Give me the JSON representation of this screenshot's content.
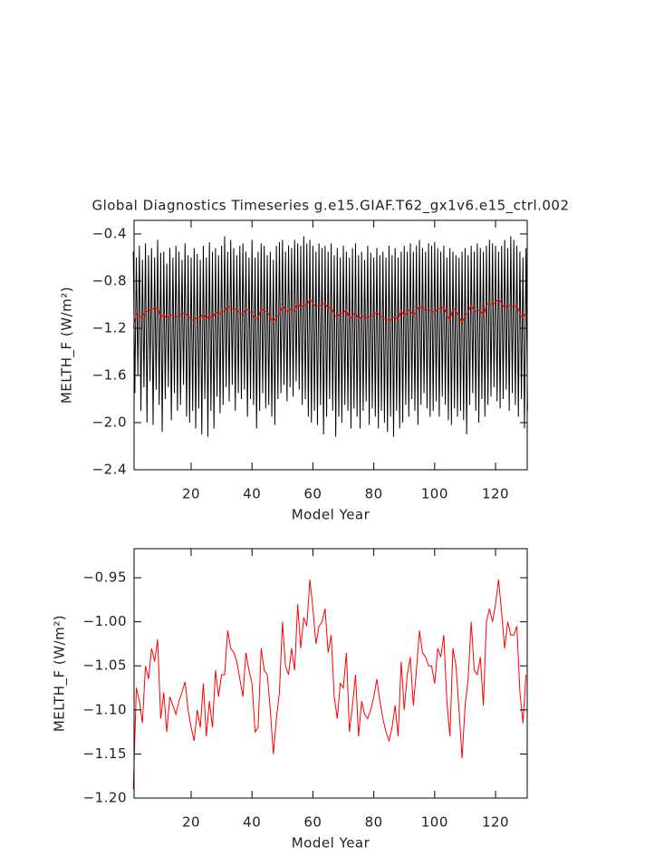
{
  "chart_data": [
    {
      "type": "line",
      "title": "Global Diagnostics Timeseries g.e15.GIAF.T62_gx1v6.e15_ctrl.002",
      "xlabel": "Model Year",
      "ylabel": "MELTH_F (W/m²)",
      "xlim": [
        1.25,
        130.4
      ],
      "xticks": [
        20,
        40,
        60,
        80,
        100,
        120
      ],
      "ylim": [
        -2.4,
        -0.285
      ],
      "yticks": [
        {
          "value": -2.4,
          "label": "−2.4"
        },
        {
          "value": -2.0,
          "label": "−2.0"
        },
        {
          "value": -1.6,
          "label": "−1.6"
        },
        {
          "value": -1.2,
          "label": "−1.2"
        },
        {
          "value": -0.8,
          "label": "−0.8"
        },
        {
          "value": -0.4,
          "label": "−0.4"
        }
      ],
      "x": [
        1,
        2,
        3,
        4,
        5,
        6,
        7,
        8,
        9,
        10,
        11,
        12,
        13,
        14,
        15,
        16,
        17,
        18,
        19,
        20,
        21,
        22,
        23,
        24,
        25,
        26,
        27,
        28,
        29,
        30,
        31,
        32,
        33,
        34,
        35,
        36,
        37,
        38,
        39,
        40,
        41,
        42,
        43,
        44,
        45,
        46,
        47,
        48,
        49,
        50,
        51,
        52,
        53,
        54,
        55,
        56,
        57,
        58,
        59,
        60,
        61,
        62,
        63,
        64,
        65,
        66,
        67,
        68,
        69,
        70,
        71,
        72,
        73,
        74,
        75,
        76,
        77,
        78,
        79,
        80,
        81,
        82,
        83,
        84,
        85,
        86,
        87,
        88,
        89,
        90,
        91,
        92,
        93,
        94,
        95,
        96,
        97,
        98,
        99,
        100,
        101,
        102,
        103,
        104,
        105,
        106,
        107,
        108,
        109,
        110,
        111,
        112,
        113,
        114,
        115,
        116,
        117,
        118,
        119,
        120,
        121,
        122,
        123,
        124,
        125,
        126,
        127,
        128,
        129,
        130
      ],
      "series": [
        {
          "color": "#000000",
          "x": [
            1,
            1.5,
            2,
            2.5,
            3,
            3.5,
            4,
            4.5,
            5,
            5.5,
            6,
            6.5,
            7,
            7.5,
            8,
            8.5,
            9,
            9.5,
            10,
            10.5,
            11,
            11.5,
            12,
            12.5,
            13,
            13.5,
            14,
            14.5,
            15,
            15.5,
            16,
            16.5,
            17,
            17.5,
            18,
            18.5,
            19,
            19.5,
            20,
            20.5,
            21,
            21.5,
            22,
            22.5,
            23,
            23.5,
            24,
            24.5,
            25,
            25.5,
            26,
            26.5,
            27,
            27.5,
            28,
            28.5,
            29,
            29.5,
            30,
            30.5,
            31,
            31.5,
            32,
            32.5,
            33,
            33.5,
            34,
            34.5,
            35,
            35.5,
            36,
            36.5,
            37,
            37.5,
            38,
            38.5,
            39,
            39.5,
            40,
            40.5,
            41,
            41.5,
            42,
            42.5,
            43,
            43.5,
            44,
            44.5,
            45,
            45.5,
            46,
            46.5,
            47,
            47.5,
            48,
            48.5,
            49,
            49.5,
            50,
            50.5,
            51,
            51.5,
            52,
            52.5,
            53,
            53.5,
            54,
            54.5,
            55,
            55.5,
            56,
            56.5,
            57,
            57.5,
            58,
            58.5,
            59,
            59.5,
            60,
            60.5,
            61,
            61.5,
            62,
            62.5,
            63,
            63.5,
            64,
            64.5,
            65,
            65.5,
            66,
            66.5,
            67,
            67.5,
            68,
            68.5,
            69,
            69.5,
            70,
            70.5,
            71,
            71.5,
            72,
            72.5,
            73,
            73.5,
            74,
            74.5,
            75,
            75.5,
            76,
            76.5,
            77,
            77.5,
            78,
            78.5,
            79,
            79.5,
            80,
            80.5,
            81,
            81.5,
            82,
            82.5,
            83,
            83.5,
            84,
            84.5,
            85,
            85.5,
            86,
            86.5,
            87,
            87.5,
            88,
            88.5,
            89,
            89.5,
            90,
            90.5,
            91,
            91.5,
            92,
            92.5,
            93,
            93.5,
            94,
            94.5,
            95,
            95.5,
            96,
            96.5,
            97,
            97.5,
            98,
            98.5,
            99,
            99.5,
            100,
            100.5,
            101,
            101.5,
            102,
            102.5,
            103,
            103.5,
            104,
            104.5,
            105,
            105.5,
            106,
            106.5,
            107,
            107.5,
            108,
            108.5,
            109,
            109.5,
            110,
            110.5,
            111,
            111.5,
            112,
            112.5,
            113,
            113.5,
            114,
            114.5,
            115,
            115.5,
            116,
            116.5,
            117,
            117.5,
            118,
            118.5,
            119,
            119.5,
            120,
            120.5,
            121,
            121.5,
            122,
            122.5,
            123,
            123.5,
            124,
            124.5,
            125,
            125.5,
            126,
            126.5,
            127,
            127.5,
            128,
            128.5,
            129,
            129.5,
            130,
            130.5
          ],
          "values": [
            -0.55,
            -1.75,
            -0.6,
            -1.6,
            -0.5,
            -1.9,
            -0.62,
            -1.7,
            -0.48,
            -2.0,
            -0.58,
            -1.65,
            -0.52,
            -2.02,
            -0.6,
            -1.72,
            -0.45,
            -1.85,
            -0.56,
            -2.08,
            -0.55,
            -1.8,
            -0.65,
            -1.7,
            -0.52,
            -1.98,
            -0.6,
            -1.75,
            -0.5,
            -1.9,
            -0.55,
            -1.85,
            -0.62,
            -1.68,
            -0.48,
            -1.95,
            -0.58,
            -2.0,
            -0.6,
            -1.9,
            -0.52,
            -2.05,
            -0.57,
            -1.88,
            -0.62,
            -2.1,
            -0.5,
            -1.8,
            -0.6,
            -2.12,
            -0.47,
            -1.9,
            -0.55,
            -2.05,
            -0.52,
            -1.78,
            -0.58,
            -1.92,
            -0.5,
            -1.85,
            -0.42,
            -1.7,
            -0.55,
            -1.82,
            -0.45,
            -1.68,
            -0.52,
            -1.9,
            -0.58,
            -1.75,
            -0.5,
            -1.8,
            -0.48,
            -1.72,
            -0.55,
            -1.95,
            -0.6,
            -1.8,
            -0.45,
            -1.85,
            -0.6,
            -2.05,
            -0.55,
            -1.9,
            -0.48,
            -1.75,
            -0.5,
            -1.88,
            -0.58,
            -1.85,
            -0.55,
            -1.95,
            -0.62,
            -2.02,
            -0.5,
            -1.8,
            -0.47,
            -1.75,
            -0.45,
            -1.68,
            -0.55,
            -1.82,
            -0.5,
            -1.7,
            -0.52,
            -1.78,
            -0.45,
            -1.65,
            -0.48,
            -1.72,
            -0.5,
            -1.85,
            -0.42,
            -1.8,
            -0.48,
            -1.95,
            -0.45,
            -2.0,
            -0.5,
            -1.9,
            -0.55,
            -2.02,
            -0.48,
            -1.85,
            -0.52,
            -2.1,
            -0.5,
            -1.95,
            -0.55,
            -1.8,
            -0.48,
            -1.9,
            -0.58,
            -2.12,
            -0.52,
            -1.95,
            -0.6,
            -2.0,
            -0.5,
            -1.85,
            -0.55,
            -1.9,
            -0.6,
            -2.05,
            -0.52,
            -1.88,
            -0.48,
            -1.95,
            -0.58,
            -2.05,
            -0.55,
            -1.9,
            -0.62,
            -1.82,
            -0.5,
            -2.02,
            -0.56,
            -1.88,
            -0.6,
            -1.95,
            -0.52,
            -2.05,
            -0.58,
            -1.9,
            -0.55,
            -2.0,
            -0.6,
            -2.08,
            -0.5,
            -1.95,
            -0.58,
            -2.12,
            -0.52,
            -1.9,
            -0.6,
            -2.05,
            -0.55,
            -2.0,
            -0.5,
            -1.85,
            -0.55,
            -1.95,
            -0.48,
            -1.8,
            -0.55,
            -1.9,
            -0.5,
            -2.02,
            -0.45,
            -1.85,
            -0.52,
            -1.75,
            -0.55,
            -1.88,
            -0.48,
            -1.95,
            -0.5,
            -1.9,
            -0.47,
            -1.82,
            -0.52,
            -1.95,
            -0.55,
            -1.78,
            -0.5,
            -1.85,
            -0.6,
            -1.98,
            -0.52,
            -2.02,
            -0.55,
            -1.88,
            -0.58,
            -1.95,
            -0.6,
            -1.9,
            -0.55,
            -1.98,
            -0.52,
            -2.1,
            -0.58,
            -1.85,
            -0.5,
            -1.75,
            -0.55,
            -1.9,
            -0.48,
            -2.0,
            -0.52,
            -1.8,
            -0.55,
            -1.95,
            -0.5,
            -1.85,
            -0.45,
            -1.78,
            -0.48,
            -1.7,
            -0.5,
            -1.82,
            -0.55,
            -1.88,
            -0.5,
            -1.8,
            -0.45,
            -1.72,
            -0.52,
            -1.9,
            -0.42,
            -1.75,
            -0.45,
            -1.85,
            -0.5,
            -1.95,
            -0.55,
            -1.8,
            -0.6,
            -2.05,
            -0.52,
            -1.9
          ]
        },
        {
          "color": "#ff0000",
          "values": [
            -1.19,
            -1.075,
            -1.09,
            -1.115,
            -1.05,
            -1.065,
            -1.03,
            -1.045,
            -1.02,
            -1.11,
            -1.08,
            -1.125,
            -1.085,
            -1.095,
            -1.105,
            -1.09,
            -1.08,
            -1.068,
            -1.1,
            -1.12,
            -1.135,
            -1.1,
            -1.12,
            -1.07,
            -1.13,
            -1.09,
            -1.12,
            -1.055,
            -1.085,
            -1.06,
            -1.06,
            -1.01,
            -1.03,
            -1.035,
            -1.045,
            -1.065,
            -1.085,
            -1.035,
            -1.055,
            -1.07,
            -1.125,
            -1.12,
            -1.03,
            -1.055,
            -1.06,
            -1.1,
            -1.15,
            -1.11,
            -1.08,
            -1.0,
            -1.05,
            -1.06,
            -1.03,
            -1.055,
            -0.98,
            -1.03,
            -0.995,
            -1.005,
            -0.952,
            -0.985,
            -1.025,
            -1.005,
            -1.0,
            -0.985,
            -1.035,
            -1.015,
            -1.085,
            -1.11,
            -1.07,
            -1.075,
            -1.035,
            -1.125,
            -1.095,
            -1.06,
            -1.13,
            -1.09,
            -1.105,
            -1.11,
            -1.1,
            -1.085,
            -1.065,
            -1.09,
            -1.11,
            -1.125,
            -1.135,
            -1.12,
            -1.095,
            -1.13,
            -1.045,
            -1.1,
            -1.06,
            -1.04,
            -1.095,
            -1.055,
            -1.01,
            -1.035,
            -1.04,
            -1.05,
            -1.05,
            -1.07,
            -1.03,
            -1.04,
            -1.015,
            -1.09,
            -1.13,
            -1.03,
            -1.05,
            -1.1,
            -1.155,
            -1.095,
            -1.065,
            -1.0,
            -1.055,
            -1.06,
            -1.04,
            -1.095,
            -1.0,
            -0.985,
            -1.0,
            -0.98,
            -0.952,
            -0.99,
            -1.03,
            -1.0,
            -1.015,
            -1.015,
            -1.005,
            -1.08,
            -1.115,
            -1.06
          ]
        }
      ]
    },
    {
      "type": "line",
      "xlabel": "Model Year",
      "ylabel": "MELTH_F (W/m²)",
      "xlim": [
        1.25,
        130.4
      ],
      "xticks": [
        20,
        40,
        60,
        80,
        100,
        120
      ],
      "ylim": [
        -1.2,
        -0.917
      ],
      "yticks": [
        {
          "value": -1.2,
          "label": "−1.20"
        },
        {
          "value": -1.15,
          "label": "−1.15"
        },
        {
          "value": -1.1,
          "label": "−1.10"
        },
        {
          "value": -1.05,
          "label": "−1.05"
        },
        {
          "value": -1.0,
          "label": "−1.00"
        },
        {
          "value": -0.95,
          "label": "−0.95"
        }
      ],
      "x": [
        1,
        2,
        3,
        4,
        5,
        6,
        7,
        8,
        9,
        10,
        11,
        12,
        13,
        14,
        15,
        16,
        17,
        18,
        19,
        20,
        21,
        22,
        23,
        24,
        25,
        26,
        27,
        28,
        29,
        30,
        31,
        32,
        33,
        34,
        35,
        36,
        37,
        38,
        39,
        40,
        41,
        42,
        43,
        44,
        45,
        46,
        47,
        48,
        49,
        50,
        51,
        52,
        53,
        54,
        55,
        56,
        57,
        58,
        59,
        60,
        61,
        62,
        63,
        64,
        65,
        66,
        67,
        68,
        69,
        70,
        71,
        72,
        73,
        74,
        75,
        76,
        77,
        78,
        79,
        80,
        81,
        82,
        83,
        84,
        85,
        86,
        87,
        88,
        89,
        90,
        91,
        92,
        93,
        94,
        95,
        96,
        97,
        98,
        99,
        100,
        101,
        102,
        103,
        104,
        105,
        106,
        107,
        108,
        109,
        110,
        111,
        112,
        113,
        114,
        115,
        116,
        117,
        118,
        119,
        120,
        121,
        122,
        123,
        124,
        125,
        126,
        127,
        128,
        129,
        130
      ],
      "series": [
        {
          "color": "#ff0000",
          "values": [
            -1.19,
            -1.075,
            -1.09,
            -1.115,
            -1.05,
            -1.065,
            -1.03,
            -1.045,
            -1.02,
            -1.11,
            -1.08,
            -1.125,
            -1.085,
            -1.095,
            -1.105,
            -1.09,
            -1.08,
            -1.068,
            -1.1,
            -1.12,
            -1.135,
            -1.1,
            -1.12,
            -1.07,
            -1.13,
            -1.09,
            -1.12,
            -1.055,
            -1.085,
            -1.06,
            -1.06,
            -1.01,
            -1.03,
            -1.035,
            -1.045,
            -1.065,
            -1.085,
            -1.035,
            -1.055,
            -1.07,
            -1.125,
            -1.12,
            -1.03,
            -1.055,
            -1.06,
            -1.1,
            -1.15,
            -1.11,
            -1.08,
            -1.0,
            -1.05,
            -1.06,
            -1.03,
            -1.055,
            -0.98,
            -1.03,
            -0.995,
            -1.005,
            -0.952,
            -0.985,
            -1.025,
            -1.005,
            -1.0,
            -0.985,
            -1.035,
            -1.015,
            -1.085,
            -1.11,
            -1.07,
            -1.075,
            -1.035,
            -1.125,
            -1.095,
            -1.06,
            -1.13,
            -1.09,
            -1.105,
            -1.11,
            -1.1,
            -1.085,
            -1.065,
            -1.09,
            -1.11,
            -1.125,
            -1.135,
            -1.12,
            -1.095,
            -1.13,
            -1.045,
            -1.1,
            -1.06,
            -1.04,
            -1.095,
            -1.055,
            -1.01,
            -1.035,
            -1.04,
            -1.05,
            -1.05,
            -1.07,
            -1.03,
            -1.04,
            -1.015,
            -1.09,
            -1.13,
            -1.03,
            -1.05,
            -1.1,
            -1.155,
            -1.095,
            -1.065,
            -1.0,
            -1.055,
            -1.06,
            -1.04,
            -1.095,
            -1.0,
            -0.985,
            -1.0,
            -0.98,
            -0.952,
            -0.99,
            -1.03,
            -1.0,
            -1.015,
            -1.015,
            -1.005,
            -1.08,
            -1.115,
            -1.06
          ]
        }
      ]
    }
  ]
}
